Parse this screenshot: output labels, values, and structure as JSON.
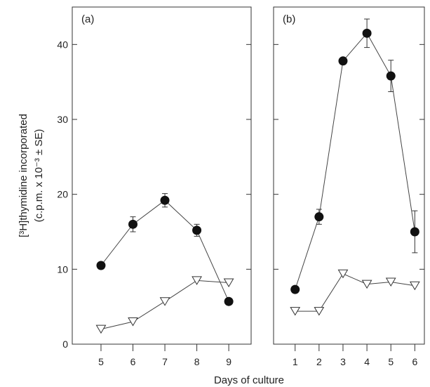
{
  "chart_data": [
    {
      "type": "scatter",
      "panel_label": "(a)",
      "x": [
        5,
        6,
        7,
        8,
        9
      ],
      "xlim": [
        4.1,
        9.7
      ],
      "ylim": [
        0,
        45
      ],
      "ylabel": "[³H]thymidine incorporated (c.p.m. x 10⁻³ ± SE)",
      "xlabel": "Days of culture",
      "xticks": [
        "5",
        "6",
        "7",
        "8",
        "9"
      ],
      "yticks": [
        "0",
        "10",
        "20",
        "30",
        "40"
      ],
      "grid": false,
      "series": [
        {
          "marker": "filled-circle",
          "line": true,
          "color": "#111111",
          "values": [
            10.5,
            16.0,
            19.2,
            15.2,
            5.7
          ],
          "error": [
            0,
            1.0,
            0.9,
            0.8,
            0
          ]
        },
        {
          "marker": "open-triangle",
          "line": true,
          "color": "#111111",
          "values": [
            2.0,
            3.0,
            5.7,
            8.5,
            8.2
          ],
          "error": [
            0,
            0,
            0,
            0,
            0
          ]
        }
      ]
    },
    {
      "type": "scatter",
      "panel_label": "(b)",
      "x": [
        1,
        2,
        3,
        4,
        5,
        6
      ],
      "xlim": [
        0.1,
        6.4
      ],
      "ylim": [
        0,
        45
      ],
      "xticks": [
        "1",
        "2",
        "3",
        "4",
        "5",
        "6"
      ],
      "grid": false,
      "series": [
        {
          "marker": "filled-circle",
          "line": true,
          "color": "#111111",
          "values": [
            7.3,
            17.0,
            37.8,
            41.5,
            35.8,
            15.0
          ],
          "error": [
            0,
            1.0,
            0,
            1.9,
            2.1,
            2.8
          ]
        },
        {
          "marker": "open-triangle",
          "line": true,
          "color": "#111111",
          "values": [
            4.4,
            4.4,
            9.4,
            8.0,
            8.3,
            7.8
          ],
          "error": [
            0,
            0,
            0,
            0,
            0,
            0
          ]
        }
      ]
    }
  ]
}
